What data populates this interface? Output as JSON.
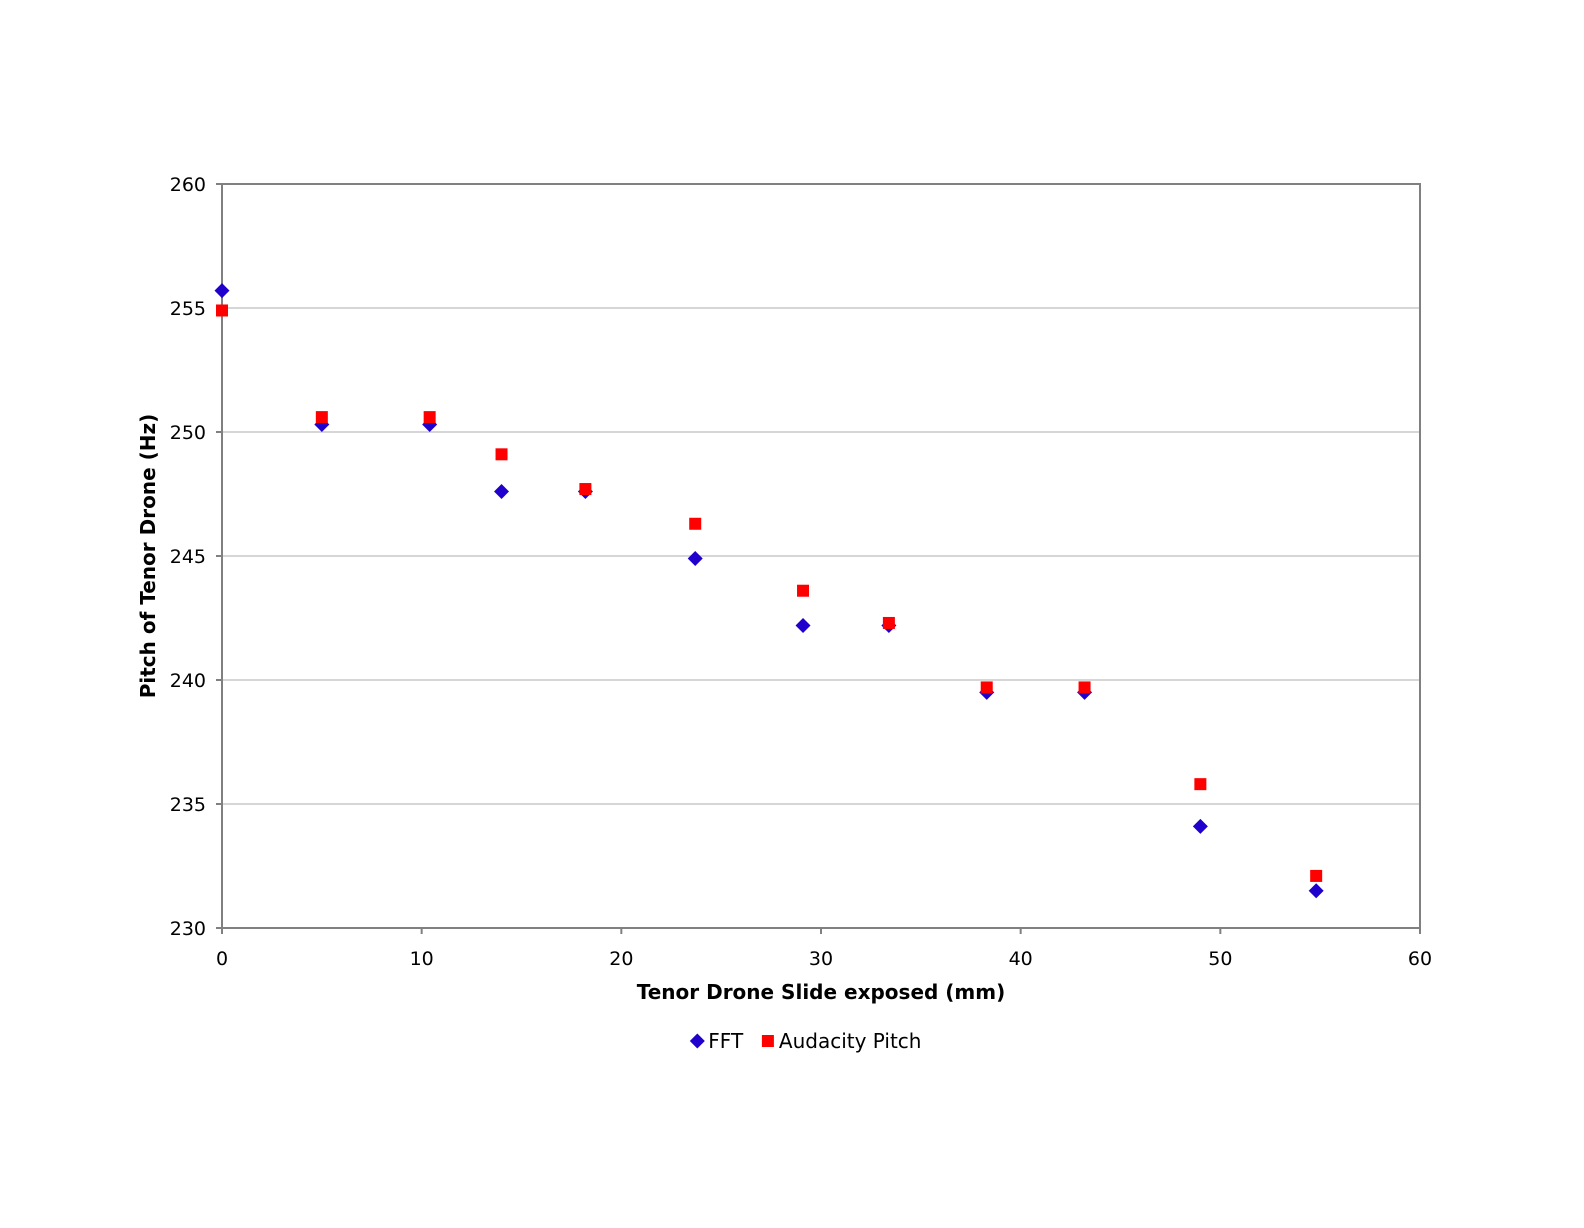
{
  "chart_data": {
    "type": "scatter",
    "title": "",
    "xlabel": "Tenor Drone Slide exposed (mm)",
    "ylabel": "Pitch of Tenor Drone (Hz)",
    "xlim": [
      0,
      60
    ],
    "ylim": [
      230,
      260
    ],
    "x_ticks": [
      0,
      10,
      20,
      30,
      40,
      50,
      60
    ],
    "y_ticks": [
      230,
      235,
      240,
      245,
      250,
      255,
      260
    ],
    "grid": {
      "horizontal": true,
      "vertical": false
    },
    "legend_position": "bottom",
    "series": [
      {
        "name": "FFT",
        "marker": "diamond",
        "color": "#1f00cc",
        "points": [
          {
            "x": 0,
            "y": 255.7
          },
          {
            "x": 5.0,
            "y": 250.3
          },
          {
            "x": 10.4,
            "y": 250.3
          },
          {
            "x": 14.0,
            "y": 247.6
          },
          {
            "x": 18.2,
            "y": 247.6
          },
          {
            "x": 23.7,
            "y": 244.9
          },
          {
            "x": 29.1,
            "y": 242.2
          },
          {
            "x": 33.4,
            "y": 242.2
          },
          {
            "x": 38.3,
            "y": 239.5
          },
          {
            "x": 43.2,
            "y": 239.5
          },
          {
            "x": 49.0,
            "y": 234.1
          },
          {
            "x": 54.8,
            "y": 231.5
          }
        ]
      },
      {
        "name": "Audacity Pitch",
        "marker": "square",
        "color": "#ff0000",
        "points": [
          {
            "x": 0,
            "y": 254.9
          },
          {
            "x": 5.0,
            "y": 250.6
          },
          {
            "x": 10.4,
            "y": 250.6
          },
          {
            "x": 14.0,
            "y": 249.1
          },
          {
            "x": 18.2,
            "y": 247.7
          },
          {
            "x": 23.7,
            "y": 246.3
          },
          {
            "x": 29.1,
            "y": 243.6
          },
          {
            "x": 33.4,
            "y": 242.3
          },
          {
            "x": 38.3,
            "y": 239.7
          },
          {
            "x": 43.2,
            "y": 239.7
          },
          {
            "x": 49.0,
            "y": 235.8
          },
          {
            "x": 54.8,
            "y": 232.1
          }
        ]
      }
    ]
  }
}
